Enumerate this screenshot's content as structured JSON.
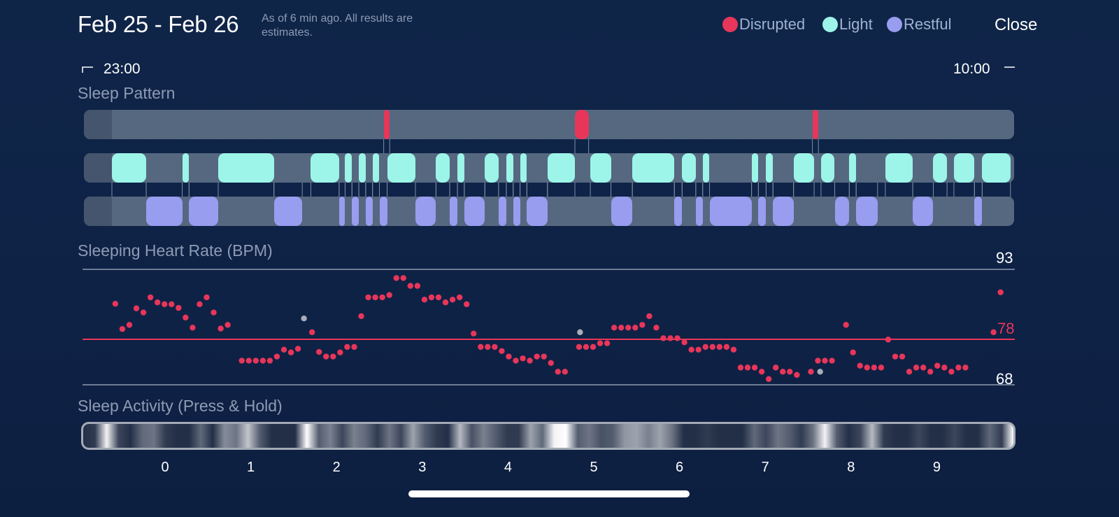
{
  "header": {
    "date_range": "Feb 25 - Feb 26",
    "as_of": "As of 6 min ago. All results are estimates.",
    "close_label": "Close"
  },
  "legend": [
    {
      "label": "Disrupted",
      "color": "#e8365a"
    },
    {
      "label": "Light",
      "color": "#9cf5e8"
    },
    {
      "label": "Restful",
      "color": "#989df0"
    }
  ],
  "time_range": {
    "start": "23:00",
    "end": "10:00"
  },
  "sleep_pattern": {
    "title": "Sleep Pattern",
    "disrupted": [
      [
        2.55,
        2.62
      ],
      [
        4.78,
        4.94
      ],
      [
        7.55,
        7.62
      ]
    ],
    "light": [
      [
        -0.62,
        -0.22
      ],
      [
        0.2,
        0.28
      ],
      [
        0.62,
        1.27
      ],
      [
        1.7,
        2.03
      ],
      [
        2.1,
        2.18
      ],
      [
        2.26,
        2.34
      ],
      [
        2.42,
        2.5
      ],
      [
        2.59,
        2.92
      ],
      [
        3.16,
        3.32
      ],
      [
        3.41,
        3.49
      ],
      [
        3.73,
        3.89
      ],
      [
        3.98,
        4.06
      ],
      [
        4.14,
        4.22
      ],
      [
        4.46,
        4.78
      ],
      [
        4.96,
        5.2
      ],
      [
        5.45,
        5.94
      ],
      [
        6.03,
        6.19
      ],
      [
        6.27,
        6.35
      ],
      [
        6.84,
        6.92
      ],
      [
        7.01,
        7.09
      ],
      [
        7.33,
        7.57
      ],
      [
        7.65,
        7.81
      ],
      [
        7.98,
        8.06
      ],
      [
        8.4,
        8.72
      ],
      [
        8.96,
        9.12
      ],
      [
        9.2,
        9.44
      ],
      [
        9.53,
        9.86
      ]
    ],
    "restful": [
      [
        -0.22,
        0.2
      ],
      [
        0.28,
        0.62
      ],
      [
        1.27,
        1.6
      ],
      [
        2.03,
        2.1
      ],
      [
        2.18,
        2.26
      ],
      [
        2.34,
        2.42
      ],
      [
        2.5,
        2.59
      ],
      [
        2.92,
        3.16
      ],
      [
        3.32,
        3.41
      ],
      [
        3.49,
        3.73
      ],
      [
        3.89,
        3.98
      ],
      [
        4.06,
        4.14
      ],
      [
        4.22,
        4.46
      ],
      [
        5.2,
        5.45
      ],
      [
        5.94,
        6.03
      ],
      [
        6.19,
        6.27
      ],
      [
        6.35,
        6.84
      ],
      [
        6.92,
        7.01
      ],
      [
        7.09,
        7.33
      ],
      [
        7.81,
        7.98
      ],
      [
        8.06,
        8.31
      ],
      [
        8.72,
        8.96
      ],
      [
        9.44,
        9.53
      ]
    ]
  },
  "heart_rate": {
    "title": "Sleeping Heart Rate (BPM)",
    "max_label": "93",
    "avg_label": "78",
    "min_label": "68",
    "ymax": 93,
    "ymin": 68,
    "avg": 78,
    "x_start": -0.58,
    "x_step": 0.08194,
    "values": [
      85.5,
      80,
      80.9,
      84.5,
      83.6,
      86.9,
      85.8,
      85.4,
      85.4,
      84.6,
      82.5,
      80.3,
      85.4,
      86.9,
      83.6,
      80.1,
      80.9,
      null,
      73.1,
      73.1,
      73.1,
      73.1,
      73.1,
      74,
      75.5,
      74.9,
      75.7,
      null,
      79.3,
      75,
      74,
      74,
      74.9,
      76.1,
      76.1,
      82.8,
      86.9,
      86.9,
      86.9,
      87.4,
      91.1,
      91.1,
      89.4,
      89.4,
      86.4,
      86.9,
      86.9,
      85.8,
      86.4,
      86.9,
      85.4,
      79,
      76.1,
      76.1,
      76.1,
      75.2,
      74,
      73.1,
      73.6,
      73.1,
      74,
      74,
      72.6,
      70.7,
      70.7,
      null,
      76.1,
      76.1,
      76.1,
      76.9,
      76.9,
      80.3,
      80.3,
      80.3,
      80.3,
      80.9,
      82.8,
      80.3,
      78,
      78,
      78,
      77.1,
      75.5,
      75.5,
      76.1,
      76.1,
      76.1,
      76.1,
      75.5,
      71.6,
      71.6,
      71.6,
      70.7,
      69.1,
      71.6,
      70.7,
      70.7,
      70,
      null,
      70.7,
      73.1,
      73.1,
      73.1,
      null,
      80.9,
      74.9,
      72,
      71.6,
      71.6,
      71.6,
      77.7,
      74,
      74,
      70.7,
      71.6,
      71.6,
      70.7,
      72,
      71.6,
      70.7,
      71.6,
      71.6,
      null,
      null,
      null,
      79.3,
      88
    ],
    "gray_points": [
      {
        "x": 1.62,
        "v": 82.3
      },
      {
        "x": 4.84,
        "v": 79.3
      },
      {
        "x": 7.64,
        "v": 70.7
      }
    ]
  },
  "sleep_activity": {
    "title": "Sleep Activity (Press & Hold)",
    "intensity": [
      0.1,
      0.15,
      0.95,
      0.2,
      0.1,
      0.35,
      0.4,
      0.15,
      0.1,
      0.1,
      0.35,
      0.1,
      0.5,
      0.4,
      0.75,
      0.3,
      0.1,
      0.1,
      0.1,
      1.0,
      0.3,
      0.45,
      0.2,
      0.45,
      0.35,
      0.15,
      0.4,
      0.2,
      0.6,
      0.3,
      0.15,
      0.1,
      0.7,
      0.25,
      0.45,
      0.3,
      0.15,
      0.15,
      0.6,
      0.35,
      0.95,
      1.0,
      0.3,
      0.4,
      0.25,
      0.3,
      0.55,
      0.6,
      0.45,
      0.6,
      0.4,
      0.1,
      0.1,
      0.15,
      0.1,
      0.1,
      0.1,
      0.35,
      0.2,
      0.4,
      0.3,
      0.15,
      0.4,
      0.95,
      0.3,
      0.1,
      0.2,
      0.7,
      0.15,
      0.1,
      0.1,
      0.2,
      0.1,
      0.1,
      0.2,
      0.1,
      0.1,
      0.35,
      0.15,
      1.0
    ],
    "x_labels": [
      "0",
      "1",
      "2",
      "3",
      "4",
      "5",
      "6",
      "7",
      "8",
      "9"
    ]
  }
}
